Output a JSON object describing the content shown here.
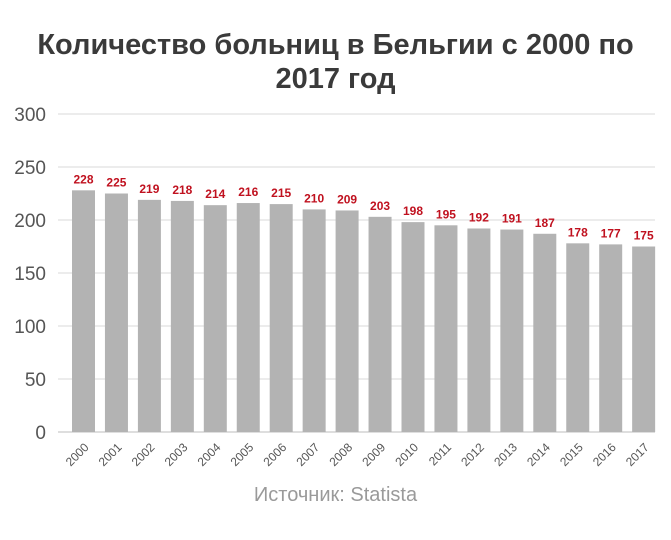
{
  "title_line1": "Количество больниц в Бельгии с 2000 по",
  "title_line2": "2017 год",
  "source": "Источник: Statista",
  "colors": {
    "bar": "#b3b3b3",
    "label": "#c0111f",
    "grid": "#d9d9d9",
    "tick": "#555555"
  },
  "chart_data": {
    "type": "bar",
    "title": "Количество больниц в Бельгии с 2000 по 2017 год",
    "categories": [
      "2000",
      "2001",
      "2002",
      "2003",
      "2004",
      "2005",
      "2006",
      "2007",
      "2008",
      "2009",
      "2010",
      "2011",
      "2012",
      "2013",
      "2014",
      "2015",
      "2016",
      "2017"
    ],
    "values": [
      228,
      225,
      219,
      218,
      214,
      216,
      215,
      210,
      209,
      203,
      198,
      195,
      192,
      191,
      187,
      178,
      177,
      175
    ],
    "ylim": [
      0,
      300
    ],
    "yticks": [
      0,
      50,
      100,
      150,
      200,
      250,
      300
    ],
    "grid": true,
    "data_labels": true
  }
}
